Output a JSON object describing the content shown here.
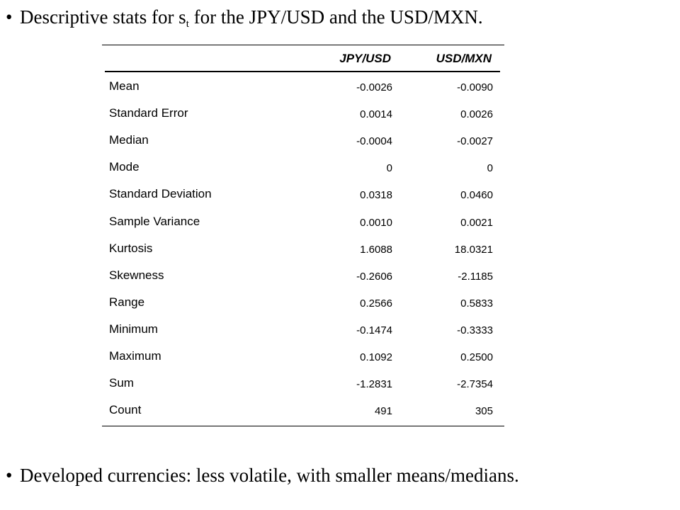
{
  "bullets": {
    "top": {
      "marker": "•",
      "pre": "Descriptive stats for s",
      "sub": "t",
      "post": " for the JPY/USD and the USD/MXN."
    },
    "bottom": {
      "marker": "•",
      "text": "Developed currencies: less volatile, with smaller means/medians."
    }
  },
  "table": {
    "headers": [
      "",
      "JPY/USD",
      "USD/MXN"
    ],
    "rows": [
      {
        "label": "Mean",
        "jpy": "-0.0026",
        "mxn": "-0.0090"
      },
      {
        "label": "Standard Error",
        "jpy": "0.0014",
        "mxn": "0.0026"
      },
      {
        "label": "Median",
        "jpy": "-0.0004",
        "mxn": "-0.0027"
      },
      {
        "label": "Mode",
        "jpy": "0",
        "mxn": "0"
      },
      {
        "label": "Standard Deviation",
        "jpy": "0.0318",
        "mxn": "0.0460"
      },
      {
        "label": "Sample Variance",
        "jpy": "0.0010",
        "mxn": "0.0021"
      },
      {
        "label": "Kurtosis",
        "jpy": "1.6088",
        "mxn": "18.0321"
      },
      {
        "label": "Skewness",
        "jpy": "-0.2606",
        "mxn": "-2.1185"
      },
      {
        "label": "Range",
        "jpy": "0.2566",
        "mxn": "0.5833"
      },
      {
        "label": "Minimum",
        "jpy": "-0.1474",
        "mxn": "-0.3333"
      },
      {
        "label": "Maximum",
        "jpy": "0.1092",
        "mxn": "0.2500"
      },
      {
        "label": "Sum",
        "jpy": "-1.2831",
        "mxn": "-2.7354"
      },
      {
        "label": "Count",
        "jpy": "491",
        "mxn": "305"
      }
    ]
  }
}
